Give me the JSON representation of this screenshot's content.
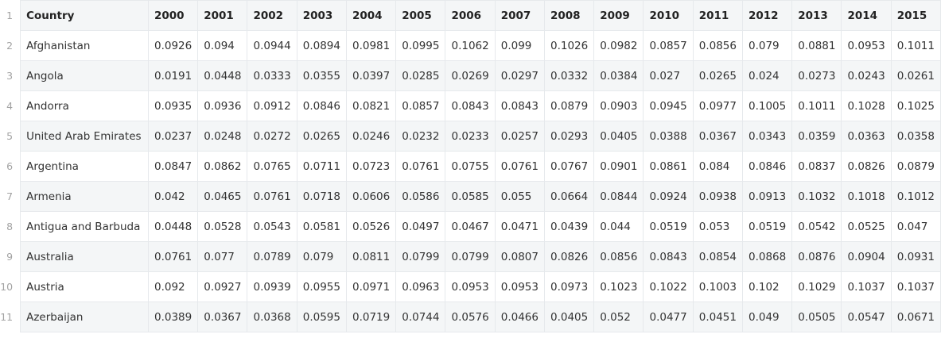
{
  "header": [
    "Country",
    "2000",
    "2001",
    "2002",
    "2003",
    "2004",
    "2005",
    "2006",
    "2007",
    "2008",
    "2009",
    "2010",
    "2011",
    "2012",
    "2013",
    "2014",
    "2015"
  ],
  "rows": [
    [
      "Afghanistan",
      "0.0926",
      "0.094",
      "0.0944",
      "0.0894",
      "0.0981",
      "0.0995",
      "0.1062",
      "0.099",
      "0.1026",
      "0.0982",
      "0.0857",
      "0.0856",
      "0.079",
      "0.0881",
      "0.0953",
      "0.1011"
    ],
    [
      "Angola",
      "0.0191",
      "0.0448",
      "0.0333",
      "0.0355",
      "0.0397",
      "0.0285",
      "0.0269",
      "0.0297",
      "0.0332",
      "0.0384",
      "0.027",
      "0.0265",
      "0.024",
      "0.0273",
      "0.0243",
      "0.0261"
    ],
    [
      "Andorra",
      "0.0935",
      "0.0936",
      "0.0912",
      "0.0846",
      "0.0821",
      "0.0857",
      "0.0843",
      "0.0843",
      "0.0879",
      "0.0903",
      "0.0945",
      "0.0977",
      "0.1005",
      "0.1011",
      "0.1028",
      "0.1025"
    ],
    [
      "United Arab Emirates",
      "0.0237",
      "0.0248",
      "0.0272",
      "0.0265",
      "0.0246",
      "0.0232",
      "0.0233",
      "0.0257",
      "0.0293",
      "0.0405",
      "0.0388",
      "0.0367",
      "0.0343",
      "0.0359",
      "0.0363",
      "0.0358"
    ],
    [
      "Argentina",
      "0.0847",
      "0.0862",
      "0.0765",
      "0.0711",
      "0.0723",
      "0.0761",
      "0.0755",
      "0.0761",
      "0.0767",
      "0.0901",
      "0.0861",
      "0.084",
      "0.0846",
      "0.0837",
      "0.0826",
      "0.0879"
    ],
    [
      "Armenia",
      "0.042",
      "0.0465",
      "0.0761",
      "0.0718",
      "0.0606",
      "0.0586",
      "0.0585",
      "0.055",
      "0.0664",
      "0.0844",
      "0.0924",
      "0.0938",
      "0.0913",
      "0.1032",
      "0.1018",
      "0.1012"
    ],
    [
      "Antigua and Barbuda",
      "0.0448",
      "0.0528",
      "0.0543",
      "0.0581",
      "0.0526",
      "0.0497",
      "0.0467",
      "0.0471",
      "0.0439",
      "0.044",
      "0.0519",
      "0.053",
      "0.0519",
      "0.0542",
      "0.0525",
      "0.047"
    ],
    [
      "Australia",
      "0.0761",
      "0.077",
      "0.0789",
      "0.079",
      "0.0811",
      "0.0799",
      "0.0799",
      "0.0807",
      "0.0826",
      "0.0856",
      "0.0843",
      "0.0854",
      "0.0868",
      "0.0876",
      "0.0904",
      "0.0931"
    ],
    [
      "Austria",
      "0.092",
      "0.0927",
      "0.0939",
      "0.0955",
      "0.0971",
      "0.0963",
      "0.0953",
      "0.0953",
      "0.0973",
      "0.1023",
      "0.1022",
      "0.1003",
      "0.102",
      "0.1029",
      "0.1037",
      "0.1037"
    ],
    [
      "Azerbaijan",
      "0.0389",
      "0.0367",
      "0.0368",
      "0.0595",
      "0.0719",
      "0.0744",
      "0.0576",
      "0.0466",
      "0.0405",
      "0.052",
      "0.0477",
      "0.0451",
      "0.049",
      "0.0505",
      "0.0547",
      "0.0671"
    ]
  ]
}
